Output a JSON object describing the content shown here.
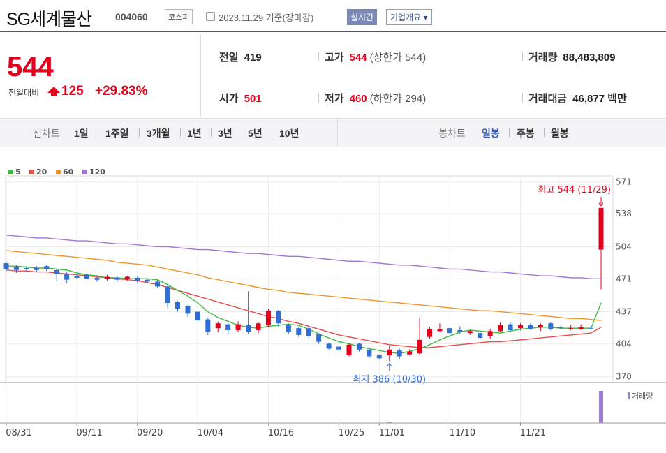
{
  "header": {
    "name": "SG세계물산",
    "code": "004060",
    "market": "코스피",
    "date": "2023.11.29 기준(장마감)",
    "realtime_label": "실시간",
    "overview_label": "기업개요 ▾"
  },
  "price": {
    "current": "544",
    "change_label": "전일대비",
    "change": "125",
    "change_pct": "+29.83%"
  },
  "quote": {
    "prev_label": "전일",
    "prev": "419",
    "high_label": "고가",
    "high": "544",
    "high_sub": "(상한가 544)",
    "volume_label": "거래량",
    "volume": "88,483,809",
    "open_label": "시가",
    "open": "501",
    "low_label": "저가",
    "low": "460",
    "low_sub": "(하한가 294)",
    "value_label": "거래대금",
    "value": "46,877 백만"
  },
  "period_bar": {
    "line_label": "선차트",
    "line_periods": [
      "1일",
      "1주일",
      "3개월",
      "1년",
      "3년",
      "5년",
      "10년"
    ],
    "candle_label": "봉차트",
    "candle_periods": [
      "일봉",
      "주봉",
      "월봉"
    ],
    "candle_selected": "일봉"
  },
  "chart_data": {
    "type": "candlestick",
    "legend": [
      {
        "name": "5",
        "color": "#3dbb3d"
      },
      {
        "name": "20",
        "color": "#e94b4b"
      },
      {
        "name": "60",
        "color": "#f0962e"
      },
      {
        "name": "120",
        "color": "#a473d8"
      }
    ],
    "up_color": "#e4001c",
    "down_color": "#2e6fd6",
    "y_ticks": [
      571,
      538,
      504,
      471,
      437,
      404,
      370
    ],
    "ylim": [
      364,
      577
    ],
    "x_labels": [
      {
        "index": 0,
        "label": "08/31"
      },
      {
        "index": 7,
        "label": "09/11"
      },
      {
        "index": 13,
        "label": "09/20"
      },
      {
        "index": 19,
        "label": "10/04"
      },
      {
        "index": 26,
        "label": "10/16"
      },
      {
        "index": 33,
        "label": "10/25"
      },
      {
        "index": 37,
        "label": "11/01"
      },
      {
        "index": 44,
        "label": "11/10"
      },
      {
        "index": 51,
        "label": "11/21"
      }
    ],
    "max_annotation": "최고 544 (11/29)",
    "min_annotation": "최저 386 (10/30)",
    "volume_label": "거래량",
    "candles": [
      [
        487,
        481,
        489,
        479
      ],
      [
        483,
        480,
        485,
        477
      ],
      [
        482,
        481,
        484,
        478
      ],
      [
        482,
        480,
        484,
        478
      ],
      [
        484,
        481,
        485,
        479
      ],
      [
        480,
        476,
        481,
        468
      ],
      [
        476,
        470,
        478,
        466
      ],
      [
        474,
        472,
        476,
        471
      ],
      [
        475,
        471,
        476,
        469
      ],
      [
        472,
        470,
        473,
        468
      ],
      [
        471,
        473,
        475,
        469
      ],
      [
        472,
        470,
        474,
        468
      ],
      [
        471,
        473,
        474,
        469
      ],
      [
        472,
        469,
        473,
        467
      ],
      [
        470,
        468,
        471,
        466
      ],
      [
        468,
        463,
        470,
        462
      ],
      [
        463,
        446,
        464,
        441
      ],
      [
        447,
        440,
        448,
        437
      ],
      [
        443,
        435,
        444,
        432
      ],
      [
        437,
        428,
        438,
        426
      ],
      [
        429,
        416,
        431,
        413
      ],
      [
        420,
        425,
        427,
        416
      ],
      [
        424,
        418,
        425,
        413
      ],
      [
        418,
        424,
        427,
        416
      ],
      [
        423,
        416,
        458,
        414
      ],
      [
        418,
        425,
        426,
        415
      ],
      [
        423,
        438,
        440,
        421
      ],
      [
        438,
        425,
        439,
        421
      ],
      [
        423,
        416,
        425,
        414
      ],
      [
        420,
        413,
        421,
        411
      ],
      [
        420,
        412,
        422,
        410
      ],
      [
        414,
        406,
        415,
        404
      ],
      [
        404,
        399,
        405,
        398
      ],
      [
        401,
        398,
        402,
        396
      ],
      [
        392,
        403,
        404,
        391
      ],
      [
        404,
        398,
        405,
        396
      ],
      [
        398,
        391,
        399,
        389
      ],
      [
        392,
        389,
        393,
        388
      ],
      [
        392,
        398,
        402,
        386
      ],
      [
        397,
        391,
        399,
        388
      ],
      [
        393,
        396,
        398,
        392
      ],
      [
        394,
        408,
        431,
        393
      ],
      [
        411,
        419,
        421,
        409
      ],
      [
        417,
        419,
        425,
        416
      ],
      [
        420,
        415,
        421,
        413
      ],
      [
        418,
        416,
        422,
        414
      ],
      [
        415,
        417,
        418,
        413
      ],
      [
        415,
        410,
        417,
        408
      ],
      [
        412,
        417,
        419,
        409
      ],
      [
        417,
        423,
        426,
        416
      ],
      [
        424,
        418,
        426,
        416
      ],
      [
        420,
        423,
        425,
        418
      ],
      [
        423,
        419,
        425,
        418
      ],
      [
        421,
        423,
        425,
        417
      ],
      [
        425,
        419,
        426,
        418
      ],
      [
        421,
        420,
        424,
        419
      ],
      [
        420,
        420,
        423,
        418
      ],
      [
        419,
        421,
        424,
        418
      ],
      [
        420,
        419,
        422,
        418
      ],
      [
        501,
        544,
        544,
        460
      ]
    ],
    "volume": [
      0,
      0,
      0,
      0,
      0,
      0,
      0,
      0,
      0,
      0,
      0,
      0,
      0,
      0,
      0,
      0,
      0,
      0,
      0,
      0,
      0,
      0,
      0,
      0,
      0,
      0,
      0,
      0,
      0,
      0,
      0,
      0,
      0,
      0,
      0,
      0,
      0,
      0,
      3,
      0,
      0,
      0,
      0,
      0,
      0,
      0,
      0,
      0,
      0,
      0,
      0,
      0,
      0,
      0,
      0,
      0,
      0,
      0,
      0,
      100
    ],
    "ma5": [
      484,
      484,
      483,
      482,
      482,
      481,
      480,
      477,
      475,
      474,
      472,
      472,
      471,
      471,
      471,
      470,
      465,
      459,
      453,
      446,
      437,
      431,
      427,
      423,
      421,
      420,
      422,
      423,
      424,
      423,
      419,
      414,
      410,
      406,
      404,
      401,
      399,
      397,
      395,
      394,
      396,
      399,
      403,
      408,
      412,
      416,
      418,
      417,
      416,
      415,
      417,
      419,
      420,
      421,
      421,
      420,
      420,
      420,
      420,
      446
    ],
    "ma20": [
      480,
      479,
      479,
      478,
      478,
      477,
      476,
      475,
      474,
      473,
      472,
      471,
      470,
      469,
      467,
      465,
      462,
      459,
      456,
      453,
      450,
      447,
      444,
      441,
      438,
      435,
      432,
      430,
      427,
      425,
      422,
      419,
      416,
      413,
      411,
      409,
      407,
      405,
      403,
      402,
      401,
      400,
      400,
      401,
      402,
      403,
      404,
      405,
      406,
      406,
      407,
      408,
      409,
      410,
      411,
      412,
      413,
      414,
      415,
      421
    ],
    "ma60": [
      500,
      499,
      498,
      497,
      496,
      495,
      494,
      493,
      492,
      491,
      490,
      488,
      487,
      486,
      485,
      483,
      481,
      479,
      477,
      475,
      472,
      470,
      468,
      466,
      464,
      462,
      460,
      459,
      457,
      456,
      455,
      454,
      453,
      452,
      451,
      450,
      449,
      448,
      447,
      446,
      445,
      444,
      443,
      442,
      441,
      440,
      439,
      438,
      438,
      437,
      436,
      435,
      434,
      433,
      432,
      431,
      430,
      430,
      429,
      428
    ],
    "ma120": [
      516,
      515,
      514,
      513,
      513,
      512,
      511,
      510,
      510,
      509,
      508,
      507,
      507,
      506,
      505,
      504,
      504,
      503,
      502,
      501,
      501,
      500,
      499,
      498,
      497,
      497,
      496,
      495,
      494,
      494,
      493,
      492,
      491,
      490,
      489,
      489,
      488,
      487,
      486,
      485,
      485,
      484,
      483,
      482,
      481,
      481,
      480,
      479,
      478,
      478,
      477,
      476,
      475,
      474,
      474,
      473,
      472,
      472,
      471,
      471
    ]
  }
}
